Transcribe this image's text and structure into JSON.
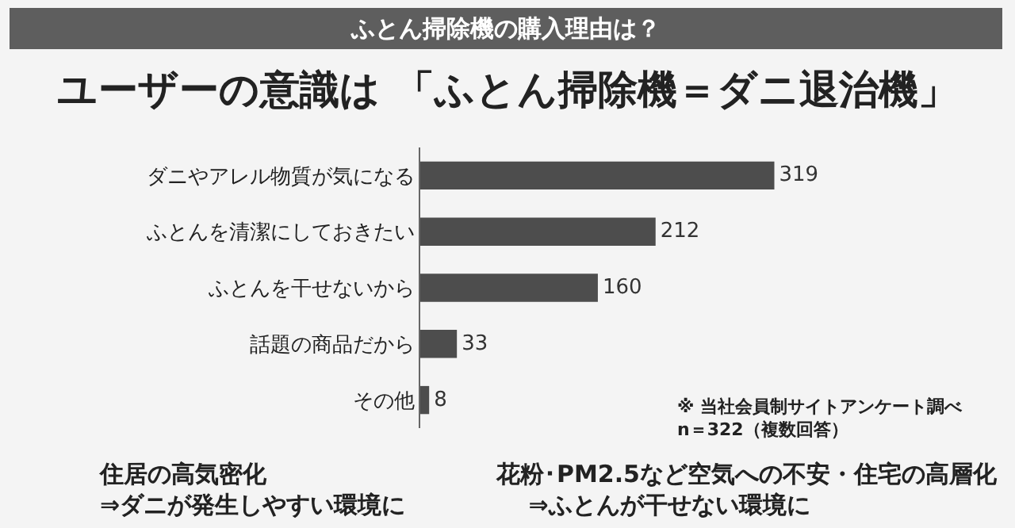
{
  "chart_data": {
    "type": "bar",
    "orientation": "horizontal",
    "title": "ふとん掃除機の購入理由は？",
    "subtitle": "ユーザーの意識は 「ふとん掃除機＝ダニ退治機」",
    "categories": [
      "ダニやアレル物質が気になる",
      "ふとんを清潔にしておきたい",
      "ふとんを干せないから",
      "話題の商品だから",
      "その他"
    ],
    "values": [
      319,
      212,
      160,
      33,
      8
    ],
    "color": "#4d4d4d",
    "data_labels": true,
    "grid": false,
    "legend": false,
    "tick_labels": "y",
    "annotations": [
      "※ 当社会員制サイトアンケート調べ\nn＝322（複数回答）",
      "住居の高気密化\n⇒ダニが発生しやすい環境に",
      "花粉･PM2.5など空気への不安・住宅の高層化\n　 ⇒ふとんが干せない環境に"
    ]
  }
}
